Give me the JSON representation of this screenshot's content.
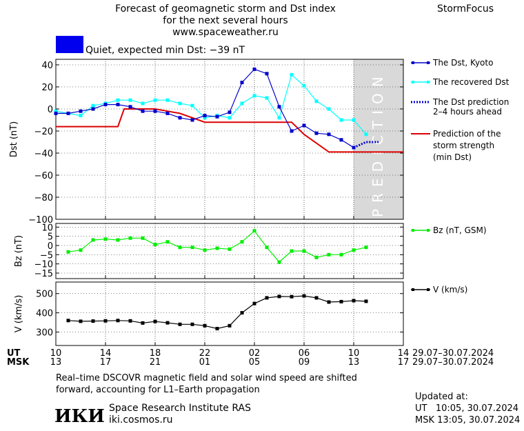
{
  "header": {
    "title_line1": "Forecast of geomagnetic storm and Dst index",
    "title_line2": "for the next several hours",
    "site": "www.spaceweather.ru",
    "brand": "StormFocus"
  },
  "status": {
    "text": "Quiet, expected min Dst: −39 nT",
    "color": "#0000ee"
  },
  "prediction_label": "PREDICTION",
  "legends": {
    "dst_kyoto": "The Dst, Kyoto",
    "recovered": "The recovered Dst",
    "prediction_line1": "The Dst prediction",
    "prediction_line2": "2–4 hours ahead",
    "strength_line1": "Prediction of the",
    "strength_line2": "storm strength",
    "strength_line3": "(min Dst)",
    "bz": "Bz (nT, GSM)",
    "v": "V (km/s)"
  },
  "axes": {
    "dst_ylabel": "Dst (nT)",
    "bz_ylabel": "Bz (nT)",
    "v_ylabel": "V (km/s)",
    "ut_label": "UT",
    "msk_label": "MSK",
    "ut_ticks": [
      "10",
      "14",
      "18",
      "22",
      "02",
      "06",
      "10",
      "14"
    ],
    "msk_ticks": [
      "13",
      "17",
      "21",
      "01",
      "05",
      "09",
      "13",
      "17"
    ],
    "date_range_ut": "29.07–30.07.2024",
    "date_range_msk": "29.07–30.07.2024"
  },
  "footer": {
    "note_line1": "Real–time DSCOVR magnetic field and solar wind speed are shifted",
    "note_line2": "forward, accounting for L1–Earth propagation",
    "logo_text": "ИКИ",
    "institute": "Space Research Institute RAS",
    "site": "iki.cosmos.ru",
    "updated_label": "Updated at:",
    "updated_ut": "UT   10:05, 30.07.2024",
    "updated_msk": "MSK 13:05, 30.07.2024"
  },
  "colors": {
    "dst": "#0000cc",
    "recovered": "#00ffff",
    "prediction": "#0000cc",
    "strength": "#dd0000",
    "bz": "#00ee00",
    "v": "#000000",
    "shade": "#d9d9d9"
  },
  "chart_data": [
    {
      "type": "line",
      "panel": "dst",
      "x_unit": "hours from 10 UT 29.07.2024",
      "xlim": [
        0,
        28
      ],
      "ylim": [
        -100,
        45
      ],
      "yticks": [
        40,
        20,
        0,
        -20,
        -40,
        -60,
        -80,
        -100
      ],
      "prediction_region": [
        24,
        28
      ],
      "series": [
        {
          "name": "The Dst, Kyoto",
          "key": "dst",
          "x": [
            0,
            1,
            2,
            3,
            4,
            5,
            6,
            7,
            8,
            9,
            10,
            11,
            12,
            13,
            14,
            15,
            16,
            17,
            18,
            19,
            20,
            21,
            22,
            23,
            24
          ],
          "y": [
            -4,
            -4,
            -2,
            0,
            4,
            4,
            2,
            -2,
            -2,
            -4,
            -8,
            -10,
            -6,
            -7,
            -3,
            24,
            36,
            32,
            2,
            -20,
            -15,
            -22,
            -23,
            -28,
            -35
          ]
        },
        {
          "name": "The recovered Dst",
          "key": "recovered",
          "x": [
            0,
            1,
            2,
            3,
            4,
            5,
            6,
            7,
            8,
            9,
            10,
            11,
            12,
            13,
            14,
            15,
            16,
            17,
            18,
            19,
            20,
            21,
            22,
            23,
            24,
            25
          ],
          "y": [
            -2,
            -4,
            -6,
            3,
            5,
            8,
            8,
            5,
            8,
            8,
            5,
            3,
            -8,
            -6,
            -8,
            5,
            12,
            10,
            -8,
            31,
            21,
            7,
            0,
            -10,
            -10,
            -23
          ]
        },
        {
          "name": "The Dst prediction 2–4 hours ahead",
          "key": "prediction",
          "x": [
            24,
            25,
            26
          ],
          "y": [
            -35,
            -30,
            -30
          ]
        },
        {
          "name": "Prediction of the storm strength (min Dst)",
          "key": "strength",
          "x": [
            0,
            5,
            5.5,
            8,
            10,
            11,
            12,
            18,
            19,
            20,
            22,
            28
          ],
          "y": [
            -16,
            -16,
            0,
            0,
            -4,
            -8,
            -12,
            -12,
            -12,
            -23,
            -39,
            -39
          ]
        }
      ]
    },
    {
      "type": "line",
      "panel": "bz",
      "x_unit": "hours from 10 UT 29.07.2024",
      "xlim": [
        0,
        28
      ],
      "ylim": [
        -18,
        12
      ],
      "yticks": [
        10,
        5,
        0,
        -5,
        -10,
        -15
      ],
      "series": [
        {
          "name": "Bz (nT, GSM)",
          "key": "bz",
          "x": [
            1,
            2,
            3,
            4,
            5,
            6,
            7,
            8,
            9,
            10,
            11,
            12,
            13,
            14,
            15,
            16,
            17,
            18,
            19,
            20,
            21,
            22,
            23,
            24,
            25
          ],
          "y": [
            -3.5,
            -2.5,
            3,
            3.5,
            3,
            4,
            4,
            0.5,
            2,
            -1,
            -1,
            -2.5,
            -1.5,
            -2,
            2,
            8,
            -1,
            -9,
            -3,
            -3,
            -6.5,
            -5,
            -5,
            -2.5,
            -1
          ]
        }
      ]
    },
    {
      "type": "line",
      "panel": "v",
      "x_unit": "hours from 10 UT 29.07.2024",
      "xlim": [
        0,
        28
      ],
      "ylim": [
        230,
        560
      ],
      "yticks": [
        500,
        400,
        300
      ],
      "series": [
        {
          "name": "V (km/s)",
          "key": "v",
          "x": [
            1,
            2,
            3,
            4,
            5,
            6,
            7,
            8,
            9,
            10,
            11,
            12,
            13,
            14,
            15,
            16,
            17,
            18,
            19,
            20,
            21,
            22,
            23,
            24,
            25
          ],
          "y": [
            360,
            356,
            357,
            358,
            360,
            358,
            347,
            355,
            348,
            340,
            340,
            333,
            318,
            333,
            400,
            448,
            478,
            485,
            484,
            488,
            478,
            456,
            458,
            463,
            460
          ]
        }
      ]
    }
  ]
}
